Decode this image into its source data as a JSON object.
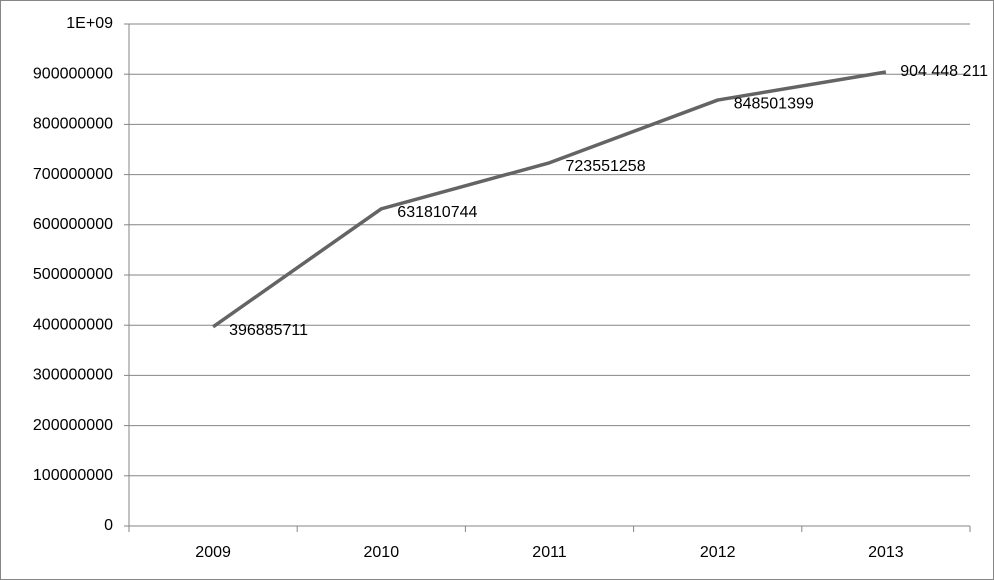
{
  "chart_data": {
    "type": "line",
    "categories": [
      "2009",
      "2010",
      "2011",
      "2012",
      "2013"
    ],
    "values": [
      396885711,
      631810744,
      723551258,
      848501399,
      904448211
    ],
    "value_labels": [
      "396885711",
      "631810744",
      "723551258",
      "848501399",
      "904 448 211"
    ],
    "color": "#646464",
    "ylim": [
      0,
      1000000000
    ],
    "yticks": [
      0,
      100000000,
      200000000,
      300000000,
      400000000,
      500000000,
      600000000,
      700000000,
      800000000,
      900000000,
      {
        "value": 1000000000,
        "label": "1E+09"
      }
    ],
    "grid": true
  }
}
